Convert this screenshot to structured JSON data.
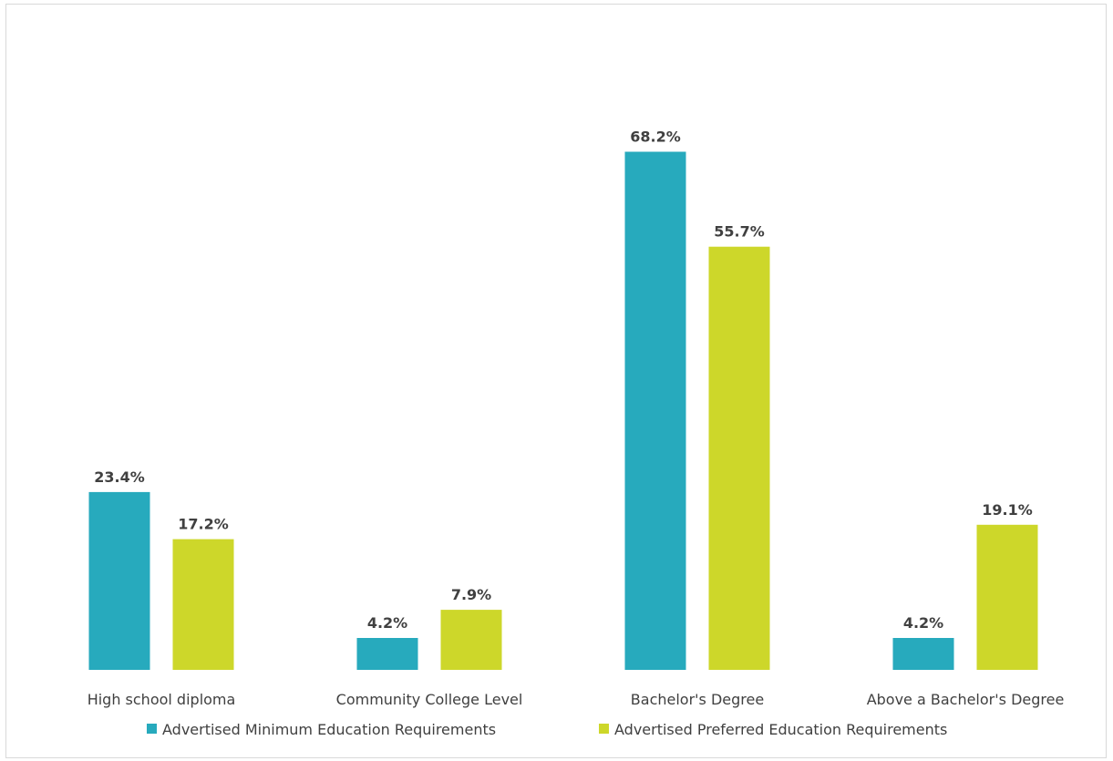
{
  "chart_data": {
    "type": "bar",
    "categories": [
      "High school diploma",
      "Community College Level",
      "Bachelor's Degree",
      "Above a Bachelor's Degree"
    ],
    "series": [
      {
        "name": "Advertised Minimum Education Requirements",
        "values": [
          23.4,
          4.2,
          68.2,
          4.2
        ],
        "labels": [
          "23.4%",
          "4.2%",
          "68.2%",
          "4.2%"
        ],
        "color": "#27aabd"
      },
      {
        "name": "Advertised Preferred Education Requirements",
        "values": [
          17.2,
          7.9,
          55.7,
          19.1
        ],
        "labels": [
          "17.2%",
          "7.9%",
          "55.7%",
          "19.1%"
        ],
        "color": "#cdd72a"
      }
    ],
    "title": "",
    "xlabel": "",
    "ylabel": "",
    "ylim": [
      0,
      80
    ],
    "grid": false,
    "legend_position": "bottom"
  }
}
